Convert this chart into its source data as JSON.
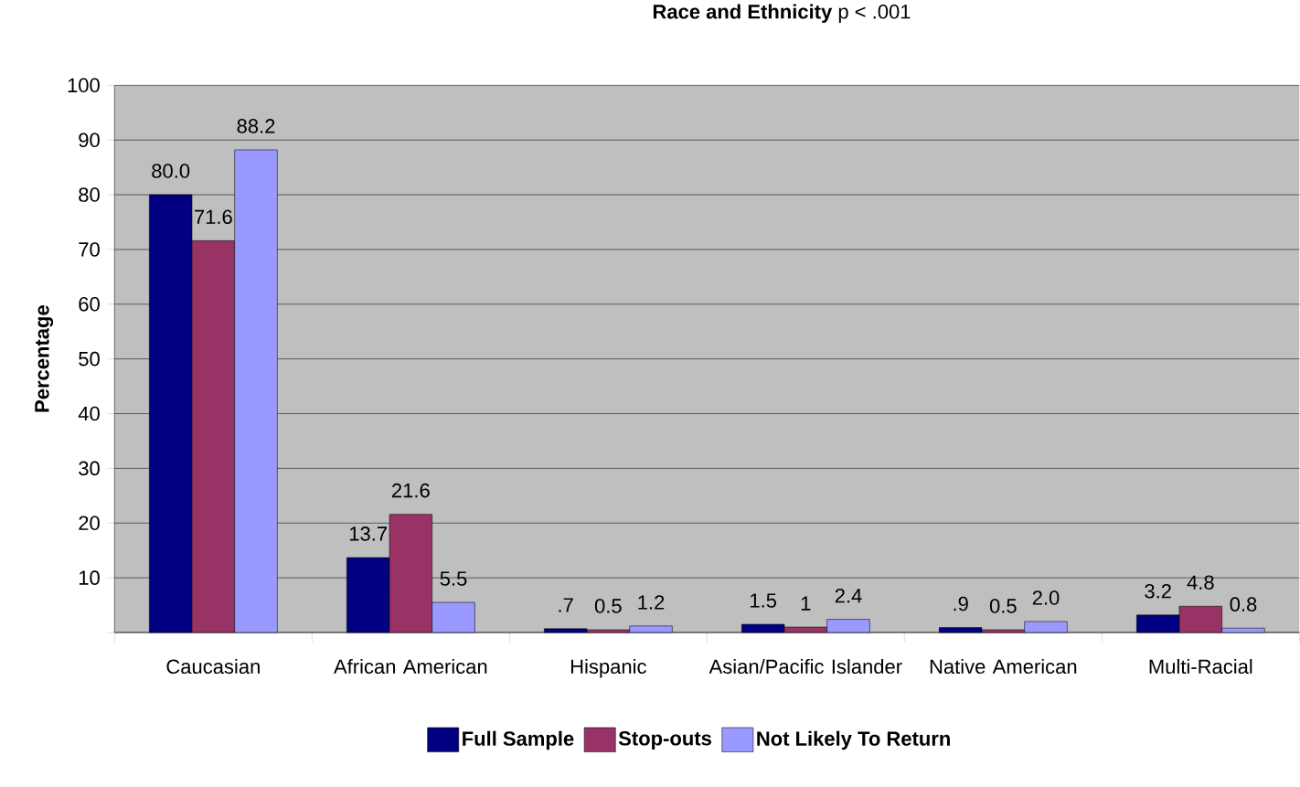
{
  "chart_data": {
    "type": "bar",
    "title": "**Race and Ethnicity**  p < .001",
    "ylabel": "Percentage",
    "categories": [
      "Caucasian",
      "African American",
      "Hispanic",
      "Asian/Pacific Islander",
      "Native American",
      "Multi-Racial"
    ],
    "series": [
      {
        "name": "Full Sample",
        "color": "#000080",
        "values": [
          80.0,
          13.7,
          0.7,
          1.5,
          0.9,
          3.2
        ],
        "value_labels": [
          "80.0",
          "13.7",
          ".7",
          "1.5",
          ".9",
          "3.2"
        ]
      },
      {
        "name": "Stop-outs",
        "color": "#993366",
        "values": [
          71.6,
          21.6,
          0.5,
          1,
          0.5,
          4.8
        ],
        "value_labels": [
          "71.6",
          "21.6",
          "0.5",
          "1",
          "0.5",
          "4.8"
        ]
      },
      {
        "name": "Not Likely To Return",
        "color": "#9999ff",
        "values": [
          88.2,
          5.5,
          1.2,
          2.4,
          2.0,
          0.8
        ],
        "value_labels": [
          "88.2",
          "5.5",
          "1.2",
          "2.4",
          "2.0",
          "0.8"
        ]
      }
    ],
    "ylim": [
      0,
      100
    ],
    "yticks": [
      {
        "value": 0,
        "label": null
      },
      10,
      20,
      30,
      40,
      50,
      60,
      70,
      80,
      90,
      100
    ],
    "grid": "y",
    "legend": "bottom"
  }
}
